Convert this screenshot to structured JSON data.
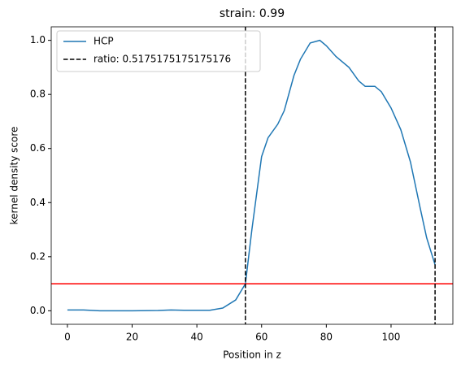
{
  "chart_data": {
    "type": "line",
    "title": "strain: 0.99",
    "xlabel": "Position in z",
    "ylabel": "kernel density score",
    "series": [
      {
        "name": "HCP",
        "color": "#1f77b4",
        "x": [
          0,
          5,
          10,
          20,
          28,
          32,
          36,
          44,
          48,
          52,
          55,
          57,
          60,
          62,
          65,
          67,
          70,
          72,
          75,
          78,
          80,
          83,
          87,
          90,
          92,
          95,
          97,
          100,
          103,
          106,
          109,
          111,
          113.6
        ],
        "values": [
          0.003,
          0.003,
          0.0,
          0.0,
          0.001,
          0.003,
          0.002,
          0.002,
          0.01,
          0.04,
          0.1,
          0.3,
          0.57,
          0.64,
          0.69,
          0.74,
          0.87,
          0.93,
          0.99,
          1.0,
          0.98,
          0.94,
          0.9,
          0.85,
          0.83,
          0.83,
          0.81,
          0.75,
          0.67,
          0.55,
          0.38,
          0.27,
          0.17
        ]
      }
    ],
    "vlines": {
      "name": "ratio: 0.5175175175175176",
      "color": "#000000",
      "x": [
        55,
        113.6
      ]
    },
    "hline": {
      "y": 0.1,
      "color": "#ff0000"
    },
    "xlim": [
      -5,
      119.1
    ],
    "ylim": [
      -0.05,
      1.05
    ],
    "xticks": [
      0,
      20,
      40,
      60,
      80,
      100
    ],
    "yticks": [
      {
        "value": 0,
        "label": "0.0"
      },
      0.2,
      0.4,
      0.6,
      0.8,
      {
        "value": 1,
        "label": "1.0"
      }
    ],
    "legend": "upper left"
  }
}
